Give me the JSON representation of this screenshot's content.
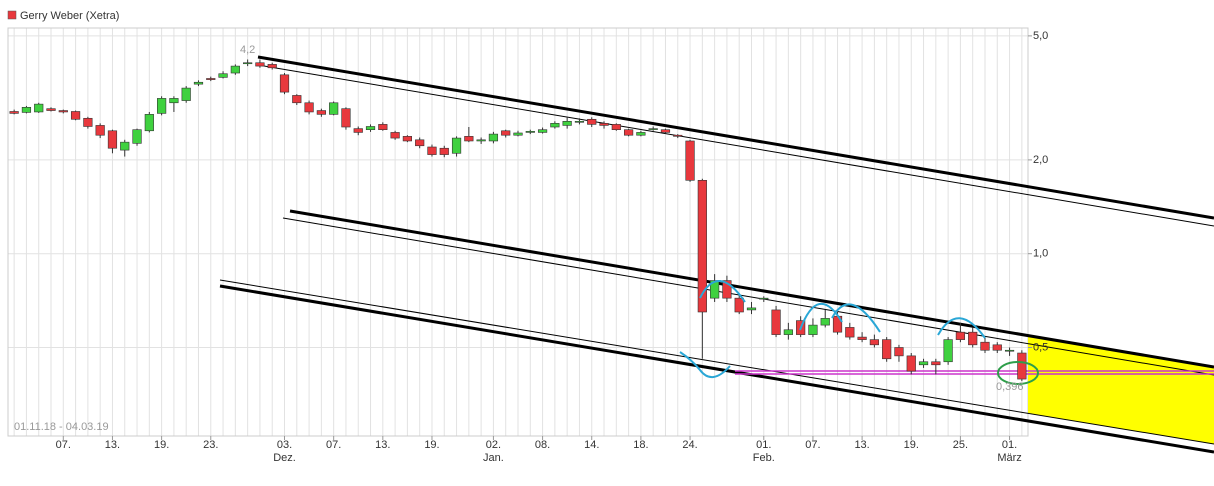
{
  "chart_data": {
    "type": "candlestick",
    "name": "Gerry Weber (Xetra)",
    "color": "#e8383d",
    "up_color": "#3fd13f",
    "date_range": "01.11.18 - 04.03.19",
    "annotations": [
      "4,2",
      "0,396"
    ],
    "log_scale": true,
    "grid": true,
    "ylim": [
      0.26,
      5.3
    ],
    "yticks": [
      {
        "value": 0.5,
        "label": "0,5"
      },
      {
        "value": 1.0,
        "label": "1,0"
      },
      {
        "value": 2.0,
        "label": "2,0"
      },
      {
        "value": 5.0,
        "label": "5,0"
      }
    ],
    "categories": [
      null,
      null,
      null,
      null,
      "07.",
      null,
      null,
      null,
      "13.",
      null,
      null,
      null,
      "19.",
      null,
      null,
      null,
      "23.",
      null,
      null,
      null,
      null,
      null,
      "03.",
      null,
      null,
      null,
      "07.",
      null,
      null,
      null,
      "13.",
      null,
      null,
      null,
      "19.",
      null,
      null,
      null,
      null,
      "02.",
      null,
      null,
      null,
      "08.",
      null,
      null,
      null,
      "14.",
      null,
      null,
      null,
      "18.",
      null,
      null,
      null,
      "24.",
      null,
      null,
      null,
      null,
      null,
      "01.",
      null,
      null,
      null,
      "07.",
      null,
      null,
      null,
      "13.",
      null,
      null,
      null,
      "19.",
      null,
      null,
      null,
      "25.",
      null,
      null,
      null,
      "01.",
      null
    ],
    "month_labels": [
      null,
      null,
      null,
      null,
      null,
      null,
      null,
      null,
      null,
      null,
      null,
      null,
      null,
      null,
      null,
      null,
      null,
      null,
      null,
      null,
      null,
      null,
      "Dez.",
      null,
      null,
      null,
      null,
      null,
      null,
      null,
      null,
      null,
      null,
      null,
      null,
      null,
      null,
      null,
      null,
      "Jan.",
      null,
      null,
      null,
      null,
      null,
      null,
      null,
      null,
      null,
      null,
      null,
      null,
      null,
      null,
      null,
      null,
      null,
      null,
      null,
      null,
      null,
      "Feb.",
      null,
      null,
      null,
      null,
      null,
      null,
      null,
      null,
      null,
      null,
      null,
      null,
      null,
      null,
      null,
      null,
      null,
      null,
      null,
      "März",
      null
    ],
    "open": [
      2.86,
      2.84,
      2.85,
      2.92,
      2.88,
      2.86,
      2.72,
      2.58,
      2.48,
      2.15,
      2.26,
      2.48,
      2.82,
      3.05,
      3.1,
      3.5,
      3.65,
      3.68,
      3.8,
      4.1,
      4.1,
      4.05,
      3.75,
      3.22,
      3.05,
      2.88,
      2.8,
      2.92,
      2.52,
      2.5,
      2.6,
      2.45,
      2.38,
      2.32,
      2.2,
      2.18,
      2.1,
      2.38,
      2.3,
      2.3,
      2.48,
      2.4,
      2.45,
      2.45,
      2.55,
      2.58,
      2.66,
      2.7,
      2.62,
      2.6,
      2.5,
      2.4,
      2.52,
      2.5,
      2.4,
      2.3,
      1.72,
      0.72,
      0.82,
      0.72,
      0.66,
      0.72,
      0.66,
      0.55,
      0.61,
      0.55,
      0.59,
      0.63,
      0.58,
      0.54,
      0.53,
      0.53,
      0.5,
      0.47,
      0.44,
      0.45,
      0.45,
      0.56,
      0.56,
      0.52,
      0.51,
      0.49,
      0.48
    ],
    "high": [
      2.9,
      2.98,
      3.05,
      2.95,
      2.9,
      2.88,
      2.75,
      2.62,
      2.5,
      2.32,
      2.52,
      2.85,
      3.2,
      3.2,
      3.45,
      3.6,
      3.7,
      3.85,
      4.05,
      4.2,
      4.2,
      4.1,
      3.8,
      3.25,
      3.1,
      2.92,
      3.08,
      2.95,
      2.56,
      2.6,
      2.64,
      2.48,
      2.4,
      2.36,
      2.24,
      2.22,
      2.38,
      2.55,
      2.36,
      2.46,
      2.5,
      2.48,
      2.5,
      2.54,
      2.66,
      2.75,
      2.72,
      2.74,
      2.66,
      2.62,
      2.52,
      2.48,
      2.56,
      2.52,
      2.42,
      2.32,
      1.74,
      0.86,
      0.85,
      0.74,
      0.7,
      0.73,
      0.68,
      0.6,
      0.63,
      0.62,
      0.66,
      0.66,
      0.6,
      0.56,
      0.55,
      0.54,
      0.51,
      0.48,
      0.46,
      0.46,
      0.54,
      0.6,
      0.58,
      0.54,
      0.52,
      0.5,
      0.49
    ],
    "low": [
      2.8,
      2.82,
      2.83,
      2.86,
      2.82,
      2.68,
      2.52,
      2.35,
      2.1,
      2.05,
      2.22,
      2.45,
      2.78,
      2.85,
      3.05,
      3.45,
      3.58,
      3.65,
      3.75,
      4.0,
      3.95,
      3.9,
      3.25,
      3.0,
      2.8,
      2.75,
      2.78,
      2.5,
      2.4,
      2.46,
      2.48,
      2.32,
      2.28,
      2.18,
      2.05,
      2.04,
      2.05,
      2.28,
      2.25,
      2.26,
      2.36,
      2.38,
      2.42,
      2.43,
      2.52,
      2.52,
      2.6,
      2.55,
      2.52,
      2.48,
      2.38,
      2.38,
      2.48,
      2.43,
      2.35,
      1.7,
      0.46,
      0.7,
      0.7,
      0.64,
      0.64,
      0.7,
      0.54,
      0.53,
      0.54,
      0.54,
      0.58,
      0.55,
      0.53,
      0.52,
      0.5,
      0.45,
      0.45,
      0.41,
      0.43,
      0.41,
      0.44,
      0.52,
      0.5,
      0.48,
      0.48,
      0.47,
      0.39
    ],
    "close": [
      2.82,
      2.95,
      3.02,
      2.88,
      2.85,
      2.7,
      2.56,
      2.4,
      2.18,
      2.28,
      2.5,
      2.8,
      3.15,
      3.15,
      3.4,
      3.55,
      3.62,
      3.78,
      4.0,
      4.1,
      4.0,
      3.95,
      3.3,
      3.05,
      2.85,
      2.8,
      3.05,
      2.55,
      2.45,
      2.56,
      2.5,
      2.35,
      2.3,
      2.22,
      2.08,
      2.08,
      2.35,
      2.3,
      2.32,
      2.42,
      2.4,
      2.44,
      2.47,
      2.5,
      2.62,
      2.66,
      2.66,
      2.6,
      2.58,
      2.5,
      2.4,
      2.45,
      2.52,
      2.45,
      2.38,
      1.72,
      0.65,
      0.82,
      0.72,
      0.65,
      0.67,
      0.72,
      0.55,
      0.57,
      0.55,
      0.59,
      0.62,
      0.56,
      0.54,
      0.53,
      0.51,
      0.46,
      0.47,
      0.42,
      0.45,
      0.44,
      0.53,
      0.53,
      0.51,
      0.49,
      0.49,
      0.49,
      0.396
    ]
  }
}
